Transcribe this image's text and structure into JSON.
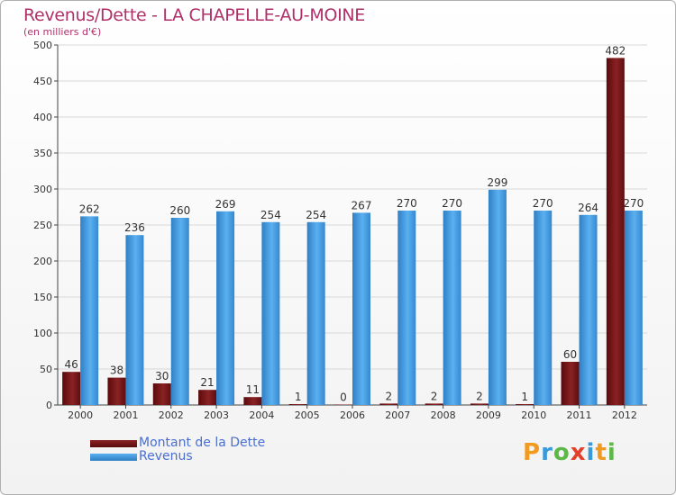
{
  "header": {
    "title": "Revenus/Dette - LA CHAPELLE-AU-MOINE",
    "subtitle": "(en milliers d'€)"
  },
  "logo": {
    "text": "Proxiti",
    "letters": [
      {
        "ch": "P",
        "color": "#f29a1f"
      },
      {
        "ch": "r",
        "color": "#3a9ad9"
      },
      {
        "ch": "o",
        "color": "#5cb847"
      },
      {
        "ch": "x",
        "color": "#e2402a"
      },
      {
        "ch": "i",
        "color": "#3a9ad9"
      },
      {
        "ch": "t",
        "color": "#f29a1f"
      },
      {
        "ch": "i",
        "color": "#5cb847"
      }
    ]
  },
  "chart_data": {
    "type": "bar",
    "title": "Revenus/Dette - LA CHAPELLE-AU-MOINE",
    "subtitle": "(en milliers d'€)",
    "xlabel": "",
    "ylabel": "",
    "ylim": [
      0,
      500
    ],
    "yticks": [
      0,
      50,
      100,
      150,
      200,
      250,
      300,
      350,
      400,
      450,
      500
    ],
    "grid": true,
    "legend_position": "bottom-left",
    "categories": [
      "2000",
      "2001",
      "2002",
      "2003",
      "2004",
      "2005",
      "2006",
      "2007",
      "2008",
      "2009",
      "2010",
      "2011",
      "2012"
    ],
    "series": [
      {
        "name": "Montant de la Dette",
        "color": "#7a1416",
        "values": [
          46,
          38,
          30,
          21,
          11,
          1,
          0,
          2,
          2,
          2,
          1,
          60,
          482
        ]
      },
      {
        "name": "Revenus",
        "color": "#4aa3e8",
        "values": [
          262,
          236,
          260,
          269,
          254,
          254,
          267,
          270,
          270,
          299,
          270,
          264,
          270
        ]
      }
    ]
  }
}
